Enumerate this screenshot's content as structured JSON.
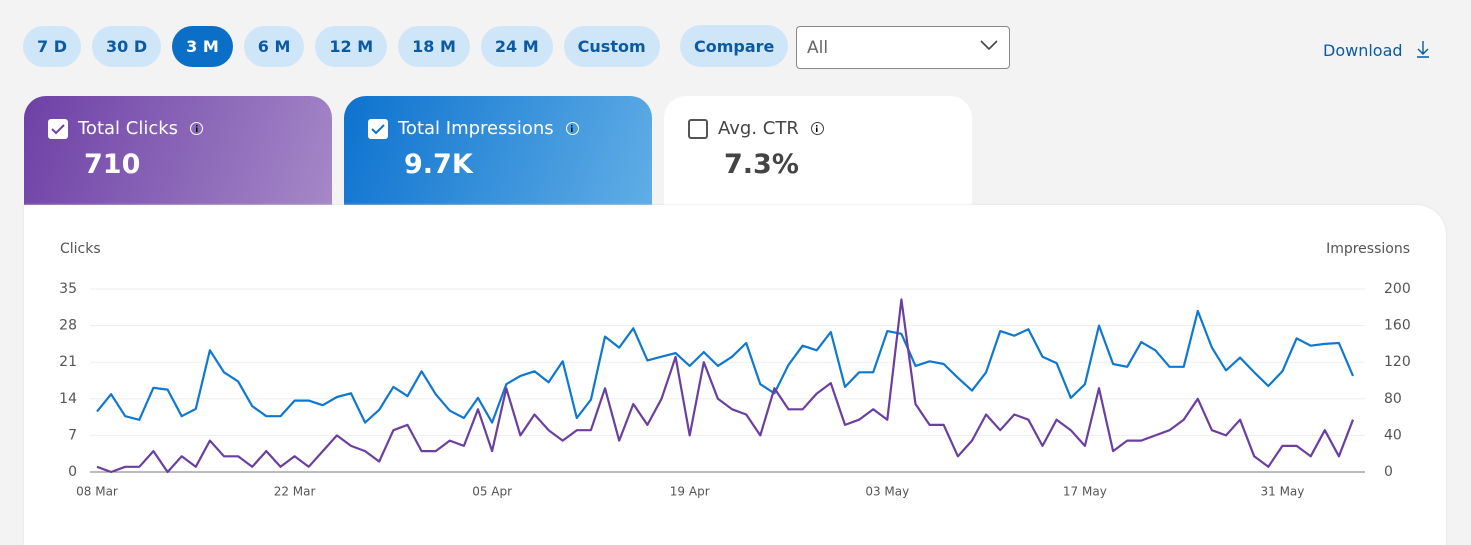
{
  "toolbar": {
    "ranges": [
      "7 D",
      "30 D",
      "3 M",
      "6 M",
      "12 M",
      "18 M",
      "24 M",
      "Custom"
    ],
    "selected_range": 2,
    "compare": "Compare",
    "filter": "All",
    "download": "Download"
  },
  "cards": [
    {
      "label": "Total Clicks",
      "value": 710,
      "checked": true
    },
    {
      "label": "Total Impressions",
      "value": "9.7K",
      "checked": true
    },
    {
      "label": "Avg. CTR",
      "value": "7.3%",
      "checked": false
    }
  ],
  "chart_data": {
    "type": "line",
    "categories": [
      "08 Mar",
      null,
      null,
      null,
      null,
      null,
      null,
      null,
      null,
      null,
      null,
      null,
      null,
      null,
      "22 Mar",
      null,
      null,
      null,
      null,
      null,
      null,
      null,
      null,
      null,
      null,
      null,
      null,
      null,
      "05 Apr",
      null,
      null,
      null,
      null,
      null,
      null,
      null,
      null,
      null,
      null,
      null,
      null,
      null,
      "19 Apr",
      null,
      null,
      null,
      null,
      null,
      null,
      null,
      null,
      null,
      null,
      null,
      null,
      null,
      "03 May",
      null,
      null,
      null,
      null,
      null,
      null,
      null,
      null,
      null,
      null,
      null,
      null,
      null,
      "17 May",
      null,
      null,
      null,
      null,
      null,
      null,
      null,
      null,
      null,
      null,
      null,
      null,
      null,
      "31 May",
      null,
      null,
      null,
      null,
      null
    ],
    "series": [
      {
        "name": "Clicks",
        "color": "#6b3fa0",
        "values": [
          1,
          0,
          1,
          1,
          4,
          0,
          3,
          1,
          6,
          3,
          3,
          1,
          4,
          1,
          3,
          1,
          4,
          7,
          5,
          4,
          2,
          8,
          9,
          4,
          4,
          6,
          5,
          12,
          4,
          16,
          7,
          11,
          8,
          6,
          8,
          8,
          16,
          6,
          13,
          9,
          14,
          22,
          7,
          21,
          14,
          12,
          11,
          7,
          16,
          12,
          12,
          15,
          17,
          9,
          10,
          12,
          10,
          33,
          13,
          9,
          9,
          3,
          6,
          11,
          8,
          11,
          10,
          5,
          10,
          8,
          5,
          16,
          4,
          6,
          6,
          7,
          8,
          10,
          14,
          8,
          7,
          10,
          3,
          1,
          5,
          5,
          3,
          8,
          3,
          10
        ]
      },
      {
        "name": "Impressions",
        "color": "#0f78d0",
        "axis": "y2",
        "values": [
          66,
          85,
          61,
          57,
          92,
          90,
          61,
          69,
          133,
          109,
          99,
          72,
          61,
          61,
          78,
          78,
          73,
          82,
          86,
          54,
          68,
          93,
          83,
          110,
          85,
          67,
          59,
          81,
          54,
          96,
          105,
          110,
          98,
          121,
          59,
          79,
          148,
          136,
          157,
          122,
          126,
          130,
          116,
          131,
          116,
          126,
          141,
          96,
          86,
          117,
          138,
          133,
          153,
          93,
          109,
          109,
          154,
          151,
          116,
          121,
          118,
          103,
          89,
          109,
          154,
          149,
          156,
          126,
          119,
          81,
          96,
          160,
          118,
          115,
          142,
          133,
          115,
          115,
          176,
          136,
          111,
          125,
          109,
          94,
          110,
          146,
          138,
          140,
          141,
          105
        ]
      }
    ],
    "ylim": [
      0,
      35
    ],
    "yticks": [
      0,
      7,
      14,
      21,
      28,
      35
    ],
    "y2lim": [
      0,
      200
    ],
    "y2ticks": [
      0,
      40,
      80,
      120,
      160,
      200
    ],
    "grid": true
  }
}
